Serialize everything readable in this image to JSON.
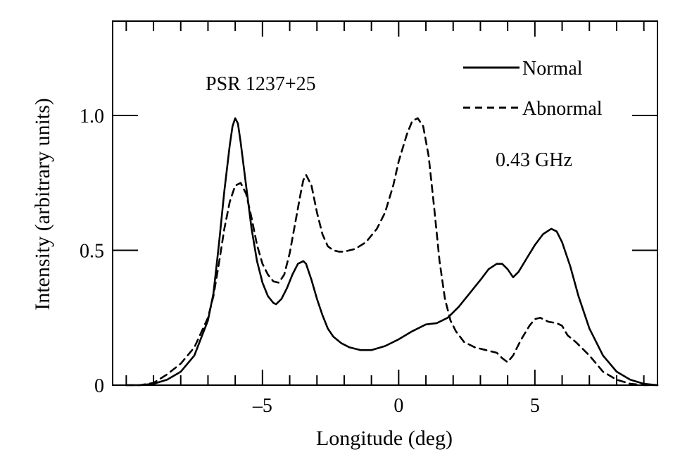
{
  "chart_data": {
    "type": "line",
    "xlabel": "Longitude (deg)",
    "ylabel": "Intensity (arbitrary units)",
    "xlim": [
      -10.5,
      9.5
    ],
    "ylim": [
      0,
      1.35
    ],
    "x_ticks": [
      -5,
      0,
      5
    ],
    "x_tick_labels": [
      "–5",
      "0",
      "5"
    ],
    "y_ticks": [
      0,
      0.5,
      1.0
    ],
    "y_tick_labels": [
      "0",
      "0.5",
      "1.0"
    ],
    "grid": false,
    "legend_position": "top-right",
    "annotations": [
      "PSR 1237+25",
      "0.43 GHz"
    ],
    "series": [
      {
        "name": "Normal",
        "style": "solid",
        "x": [
          -10,
          -9.5,
          -9,
          -8.5,
          -8,
          -7.5,
          -7,
          -6.8,
          -6.6,
          -6.4,
          -6.2,
          -6.1,
          -6.0,
          -5.9,
          -5.8,
          -5.6,
          -5.4,
          -5.2,
          -5,
          -4.8,
          -4.6,
          -4.5,
          -4.3,
          -4.1,
          -3.9,
          -3.7,
          -3.5,
          -3.4,
          -3.2,
          -3.0,
          -2.8,
          -2.6,
          -2.4,
          -2.1,
          -1.8,
          -1.4,
          -1.0,
          -0.5,
          0,
          0.5,
          1.0,
          1.4,
          1.8,
          2.2,
          2.6,
          3.0,
          3.3,
          3.6,
          3.8,
          4.0,
          4.2,
          4.4,
          4.7,
          5.0,
          5.3,
          5.6,
          5.8,
          6.0,
          6.3,
          6.6,
          7.0,
          7.5,
          8,
          8.5,
          9,
          9.5
        ],
        "y": [
          0,
          0,
          0.005,
          0.02,
          0.05,
          0.11,
          0.24,
          0.34,
          0.52,
          0.72,
          0.89,
          0.96,
          0.99,
          0.97,
          0.9,
          0.74,
          0.58,
          0.46,
          0.38,
          0.33,
          0.305,
          0.3,
          0.32,
          0.36,
          0.41,
          0.45,
          0.46,
          0.45,
          0.39,
          0.32,
          0.26,
          0.21,
          0.18,
          0.155,
          0.14,
          0.13,
          0.13,
          0.145,
          0.17,
          0.2,
          0.225,
          0.23,
          0.25,
          0.29,
          0.34,
          0.39,
          0.43,
          0.45,
          0.45,
          0.43,
          0.4,
          0.42,
          0.47,
          0.52,
          0.56,
          0.58,
          0.57,
          0.53,
          0.44,
          0.33,
          0.21,
          0.11,
          0.05,
          0.02,
          0.005,
          0
        ]
      },
      {
        "name": "Abnormal",
        "style": "dashed",
        "x": [
          -10,
          -9.5,
          -9,
          -8.5,
          -8,
          -7.5,
          -7,
          -6.8,
          -6.6,
          -6.4,
          -6.2,
          -6.0,
          -5.8,
          -5.6,
          -5.4,
          -5.2,
          -5,
          -4.8,
          -4.6,
          -4.4,
          -4.2,
          -4.0,
          -3.8,
          -3.6,
          -3.5,
          -3.4,
          -3.2,
          -3.0,
          -2.8,
          -2.6,
          -2.4,
          -2.2,
          -2.0,
          -1.6,
          -1.2,
          -0.8,
          -0.5,
          -0.2,
          0,
          0.3,
          0.5,
          0.7,
          0.9,
          1.1,
          1.3,
          1.5,
          1.7,
          1.9,
          2.1,
          2.4,
          2.8,
          3.2,
          3.6,
          3.8,
          4.0,
          4.2,
          4.5,
          4.8,
          5.0,
          5.2,
          5.5,
          5.8,
          6.0,
          6.2,
          6.5,
          7.0,
          7.5,
          8,
          8.5,
          9,
          9.5
        ],
        "y": [
          0,
          0,
          0.008,
          0.04,
          0.08,
          0.14,
          0.25,
          0.33,
          0.45,
          0.58,
          0.68,
          0.74,
          0.75,
          0.71,
          0.62,
          0.52,
          0.45,
          0.41,
          0.385,
          0.38,
          0.41,
          0.49,
          0.6,
          0.71,
          0.76,
          0.78,
          0.74,
          0.64,
          0.56,
          0.515,
          0.5,
          0.495,
          0.495,
          0.505,
          0.53,
          0.58,
          0.64,
          0.74,
          0.83,
          0.93,
          0.98,
          0.99,
          0.96,
          0.85,
          0.66,
          0.46,
          0.32,
          0.24,
          0.2,
          0.16,
          0.14,
          0.13,
          0.12,
          0.1,
          0.085,
          0.11,
          0.17,
          0.22,
          0.245,
          0.25,
          0.235,
          0.23,
          0.22,
          0.185,
          0.16,
          0.11,
          0.05,
          0.02,
          0.005,
          0,
          0
        ]
      }
    ]
  }
}
